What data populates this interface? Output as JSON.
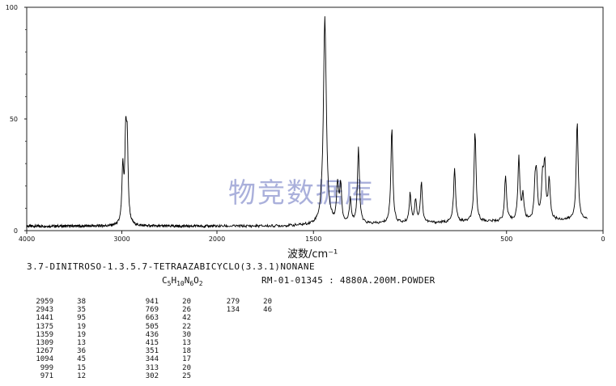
{
  "chart_data": {
    "type": "line",
    "title": "",
    "xlabel": "波数/cm⁻¹",
    "ylabel": "",
    "xlim": [
      4000,
      0
    ],
    "ylim": [
      0,
      100
    ],
    "x_ticks": [
      4000,
      3000,
      2000,
      1500,
      500,
      0
    ],
    "x_tick_labels": [
      "4000",
      "3000",
      "2000",
      "1500",
      "500",
      "0"
    ],
    "y_ticks": [
      0,
      50,
      100
    ],
    "y_tick_labels": [
      "0",
      "50",
      "100"
    ],
    "grid": false,
    "baseline": 2,
    "series": [
      {
        "peaks": [
          {
            "x": 2959,
            "y": 38
          },
          {
            "x": 2943,
            "y": 35
          },
          {
            "x": 2990,
            "y": 26
          },
          {
            "x": 1441,
            "y": 95
          },
          {
            "x": 1375,
            "y": 19
          },
          {
            "x": 1359,
            "y": 19
          },
          {
            "x": 1309,
            "y": 13
          },
          {
            "x": 1267,
            "y": 36
          },
          {
            "x": 1094,
            "y": 45
          },
          {
            "x": 999,
            "y": 15
          },
          {
            "x": 971,
            "y": 12
          },
          {
            "x": 941,
            "y": 20
          },
          {
            "x": 769,
            "y": 26
          },
          {
            "x": 663,
            "y": 42
          },
          {
            "x": 505,
            "y": 22
          },
          {
            "x": 436,
            "y": 30
          },
          {
            "x": 415,
            "y": 13
          },
          {
            "x": 351,
            "y": 18
          },
          {
            "x": 344,
            "y": 17
          },
          {
            "x": 313,
            "y": 20
          },
          {
            "x": 302,
            "y": 25
          },
          {
            "x": 279,
            "y": 20
          },
          {
            "x": 134,
            "y": 46
          }
        ]
      }
    ]
  },
  "watermark": "物竞数据库",
  "compound_name": "3.7-DINITROSO-1.3.5.7-TETRAAZABICYCLO(3.3.1)NONANE",
  "formula": {
    "c": "C",
    "c_n": "5",
    "h": "H",
    "h_n": "10",
    "n": "N",
    "n_n": "6",
    "o": "O",
    "o_n": "2"
  },
  "sample_info": "RM-01-01345 : 4880A.200M.POWDER",
  "peak_table": [
    [
      [
        "2959",
        "38"
      ],
      [
        "2943",
        "35"
      ],
      [
        "1441",
        "95"
      ],
      [
        "1375",
        "19"
      ],
      [
        "1359",
        "19"
      ],
      [
        "1309",
        "13"
      ],
      [
        "1267",
        "36"
      ],
      [
        "1094",
        "45"
      ],
      [
        "999",
        "15"
      ],
      [
        "971",
        "12"
      ]
    ],
    [
      [
        "941",
        "20"
      ],
      [
        "769",
        "26"
      ],
      [
        "663",
        "42"
      ],
      [
        "505",
        "22"
      ],
      [
        "436",
        "30"
      ],
      [
        "415",
        "13"
      ],
      [
        "351",
        "18"
      ],
      [
        "344",
        "17"
      ],
      [
        "313",
        "20"
      ],
      [
        "302",
        "25"
      ]
    ],
    [
      [
        "279",
        "20"
      ],
      [
        "134",
        "46"
      ]
    ]
  ]
}
